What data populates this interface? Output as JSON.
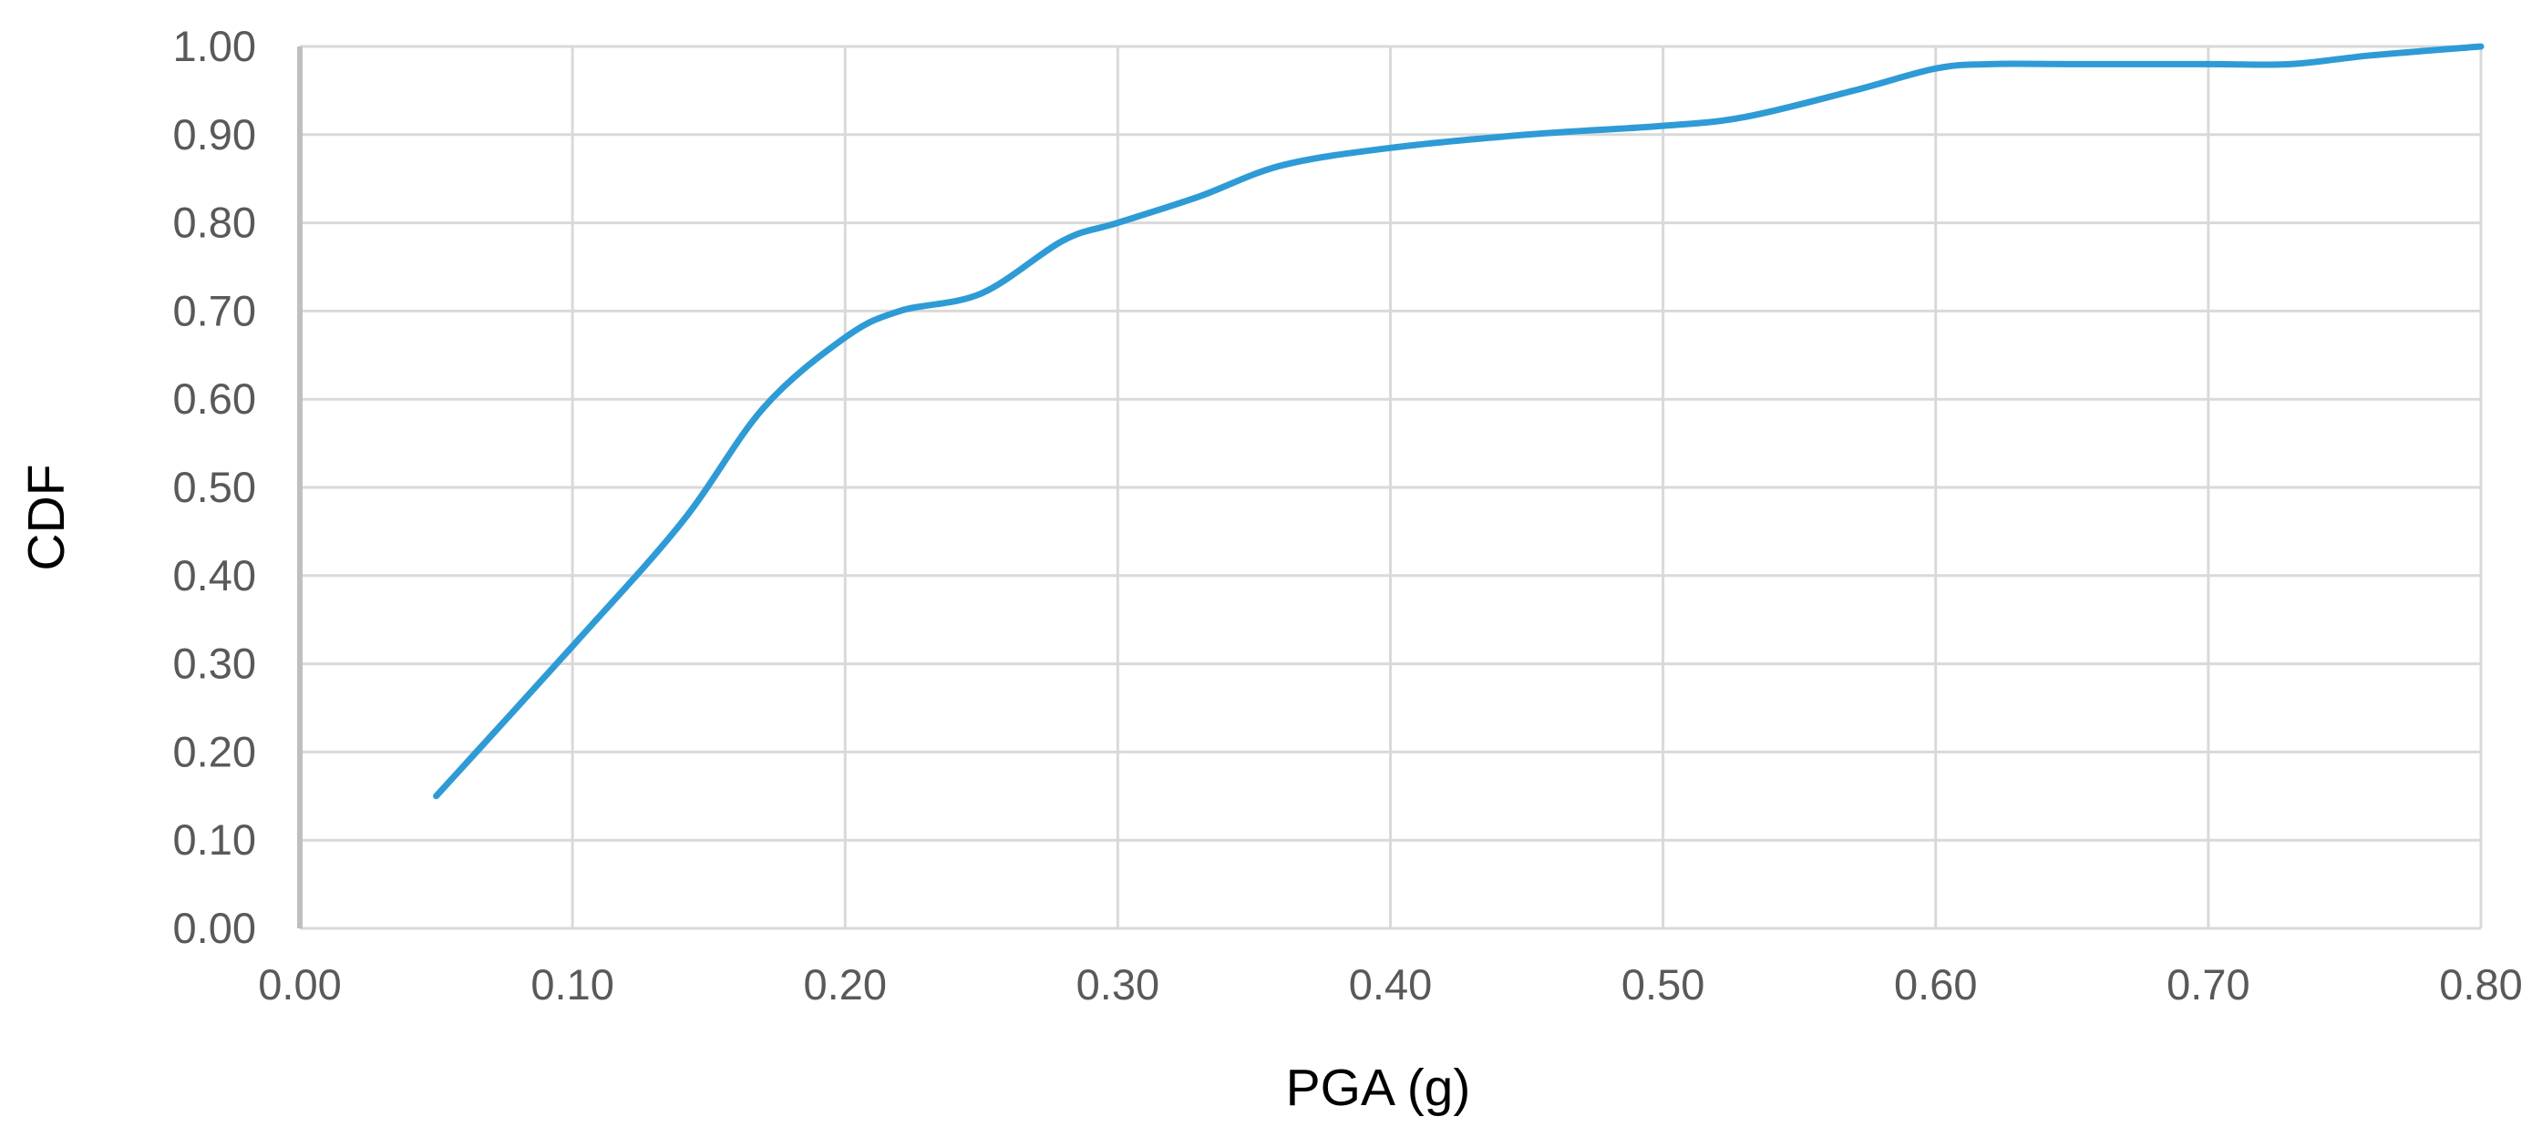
{
  "chart_data": {
    "type": "line",
    "title": "",
    "xlabel": "PGA (g)",
    "ylabel": "CDF",
    "xlim": [
      0,
      0.8
    ],
    "ylim": [
      0,
      1
    ],
    "x_ticks": [
      "0.00",
      "0.10",
      "0.20",
      "0.30",
      "0.40",
      "0.50",
      "0.60",
      "0.70",
      "0.80"
    ],
    "y_ticks": [
      "0.00",
      "0.10",
      "0.20",
      "0.30",
      "0.40",
      "0.50",
      "0.60",
      "0.70",
      "0.80",
      "0.90",
      "1.00"
    ],
    "grid": true,
    "legend": "none",
    "series": [
      {
        "color": "#2e9bd6",
        "x": [
          0.05,
          0.1,
          0.14,
          0.17,
          0.2,
          0.22,
          0.25,
          0.28,
          0.3,
          0.33,
          0.36,
          0.4,
          0.45,
          0.5,
          0.53,
          0.57,
          0.6,
          0.62,
          0.65,
          0.7,
          0.73,
          0.76,
          0.8
        ],
        "y": [
          0.15,
          0.32,
          0.46,
          0.59,
          0.67,
          0.7,
          0.72,
          0.78,
          0.8,
          0.83,
          0.865,
          0.885,
          0.9,
          0.91,
          0.92,
          0.95,
          0.975,
          0.98,
          0.98,
          0.98,
          0.98,
          0.99,
          1.0
        ]
      }
    ]
  }
}
